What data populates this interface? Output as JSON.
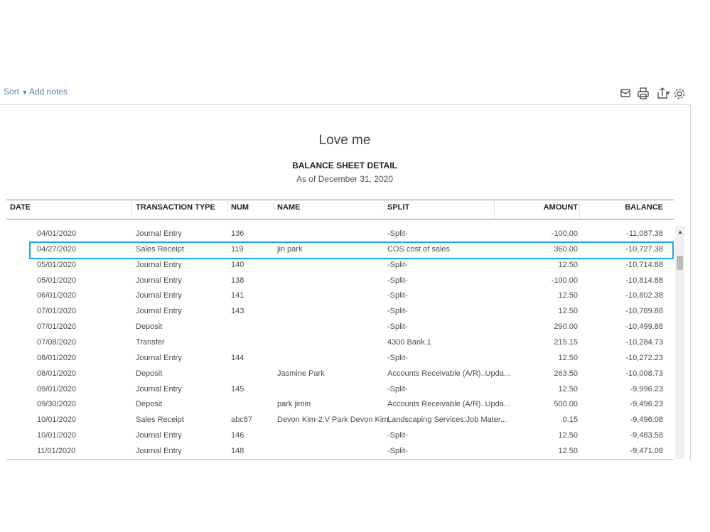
{
  "toolbar": {
    "sort": "Sort",
    "add_notes": "Add notes"
  },
  "report": {
    "company": "Love me",
    "title": "BALANCE SHEET DETAIL",
    "subtitle": "As of December 31, 2020"
  },
  "table": {
    "columns": [
      "DATE",
      "TRANSACTION TYPE",
      "NUM",
      "NAME",
      "SPLIT",
      "AMOUNT",
      "BALANCE"
    ],
    "rows": [
      [
        "04/01/2020",
        "Journal Entry",
        "136",
        null,
        "-Split-",
        "-100.00",
        "-11,087.38"
      ],
      [
        "04/27/2020",
        "Sales Receipt",
        "119",
        "jin park",
        "COS cost of sales",
        "360.00",
        "-10,727.38"
      ],
      [
        "05/01/2020",
        "Journal Entry",
        "140",
        null,
        "-Split-",
        "12.50",
        "-10,714.88"
      ],
      [
        "05/01/2020",
        "Journal Entry",
        "138",
        null,
        "-Split-",
        "-100.00",
        "-10,814.88"
      ],
      [
        "06/01/2020",
        "Journal Entry",
        "141",
        null,
        "-Split-",
        "12.50",
        "-10,802.38"
      ],
      [
        "07/01/2020",
        "Journal Entry",
        "143",
        null,
        "-Split-",
        "12.50",
        "-10,789.88"
      ],
      [
        "07/01/2020",
        "Deposit",
        null,
        null,
        "-Split-",
        "290.00",
        "-10,499.88"
      ],
      [
        "07/08/2020",
        "Transfer",
        null,
        null,
        "4300 Bank.1",
        "215.15",
        "-10,284.73"
      ],
      [
        "08/01/2020",
        "Journal Entry",
        "144",
        null,
        "-Split-",
        "12.50",
        "-10,272.23"
      ],
      [
        "08/01/2020",
        "Deposit",
        null,
        "Jasmine Park",
        "Accounts Receivable (A/R)..Upda...",
        "263.50",
        "-10,008.73"
      ],
      [
        "09/01/2020",
        "Journal Entry",
        "145",
        null,
        "-Split-",
        "12.50",
        "-9,996.23"
      ],
      [
        "09/30/2020",
        "Deposit",
        null,
        "park jimin",
        "Accounts Receivable (A/R)..Upda...",
        "500.00",
        "-9,496.23"
      ],
      [
        "10/01/2020",
        "Sales Receipt",
        "abc87",
        "Devon Kim-2:V Park Devon Kim",
        "Landscaping Services:Job Mater...",
        "0.15",
        "-9,496.08"
      ],
      [
        "10/01/2020",
        "Journal Entry",
        "146",
        null,
        "-Split-",
        "12.50",
        "-9,483.58"
      ],
      [
        "11/01/2020",
        "Journal Entry",
        "148",
        null,
        "-Split-",
        "12.50",
        "-9,471.08"
      ]
    ]
  }
}
